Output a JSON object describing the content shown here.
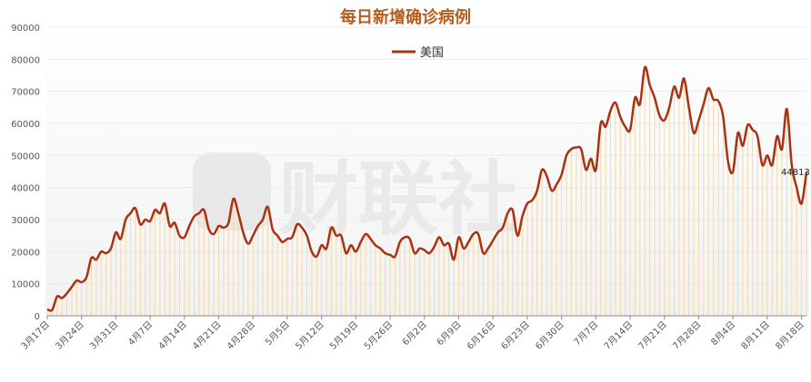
{
  "colors": {
    "line": "#a83214",
    "bar": "#f7d9a3",
    "title": "#b85c1e",
    "axis": "#888888",
    "grid": "#ebebeb",
    "watermark": "#dddddd"
  },
  "chart_data": {
    "type": "line",
    "title": "每日新增确诊病例",
    "legend": {
      "position": "top-center",
      "entries": [
        "美国"
      ]
    },
    "xlabel": "",
    "ylabel": "",
    "ylim": [
      0,
      90000
    ],
    "y_ticks": [
      "0",
      "10000",
      "20000",
      "30000",
      "40000",
      "50000",
      "60000",
      "70000",
      "80000",
      "90000"
    ],
    "x_tick_labels": [
      "3月17日",
      "3月24日",
      "3月31日",
      "4月7日",
      "4月14日",
      "4月21日",
      "4月28日",
      "5月5日",
      "5月12日",
      "5月19日",
      "5月26日",
      "6月2日",
      "6月9日",
      "6月16日",
      "6月23日",
      "6月30日",
      "7月7日",
      "7月14日",
      "7月21日",
      "7月28日",
      "8月4日",
      "8月11日",
      "8月18日"
    ],
    "grid": true,
    "annotations": [
      {
        "text": "44813"
      }
    ],
    "watermark": "财联社",
    "series": [
      {
        "name": "美国",
        "start": "3月17日",
        "values": [
          2000,
          1800,
          6000,
          5500,
          7000,
          9000,
          11000,
          10500,
          12000,
          18000,
          17500,
          20000,
          19500,
          21000,
          26000,
          24000,
          30000,
          32000,
          33500,
          28500,
          30000,
          29500,
          33000,
          32000,
          35000,
          28000,
          29000,
          25000,
          24500,
          28000,
          31000,
          32000,
          33000,
          27000,
          25500,
          28000,
          27500,
          29000,
          36500,
          32000,
          26000,
          22500,
          25000,
          28000,
          30000,
          34000,
          27000,
          25000,
          23000,
          24000,
          24500,
          28500,
          27500,
          25000,
          20000,
          18500,
          22000,
          21000,
          27500,
          25000,
          25000,
          19500,
          22000,
          20000,
          23000,
          25500,
          24000,
          22000,
          21000,
          19500,
          19000,
          18500,
          23000,
          24500,
          24000,
          19500,
          21000,
          20500,
          19500,
          21500,
          24500,
          22000,
          22500,
          17500,
          24500,
          21000,
          23000,
          25500,
          25500,
          19500,
          21000,
          23500,
          26000,
          27500,
          32000,
          33000,
          25000,
          31000,
          35000,
          36000,
          39000,
          45500,
          43500,
          39000,
          41000,
          44000,
          50000,
          52000,
          52500,
          52000,
          45500,
          49000,
          45500,
          60000,
          59000,
          64000,
          66500,
          62000,
          59000,
          58000,
          68000,
          66000,
          77500,
          72000,
          68000,
          62500,
          61000,
          65000,
          71500,
          68000,
          74000,
          65000,
          57000,
          61000,
          66000,
          71000,
          67500,
          67000,
          62000,
          48000,
          45000,
          57000,
          53000,
          59500,
          58000,
          56000,
          47000,
          50000,
          47000,
          56000,
          52000,
          64500,
          47000,
          40000,
          35000,
          44813
        ]
      }
    ]
  }
}
